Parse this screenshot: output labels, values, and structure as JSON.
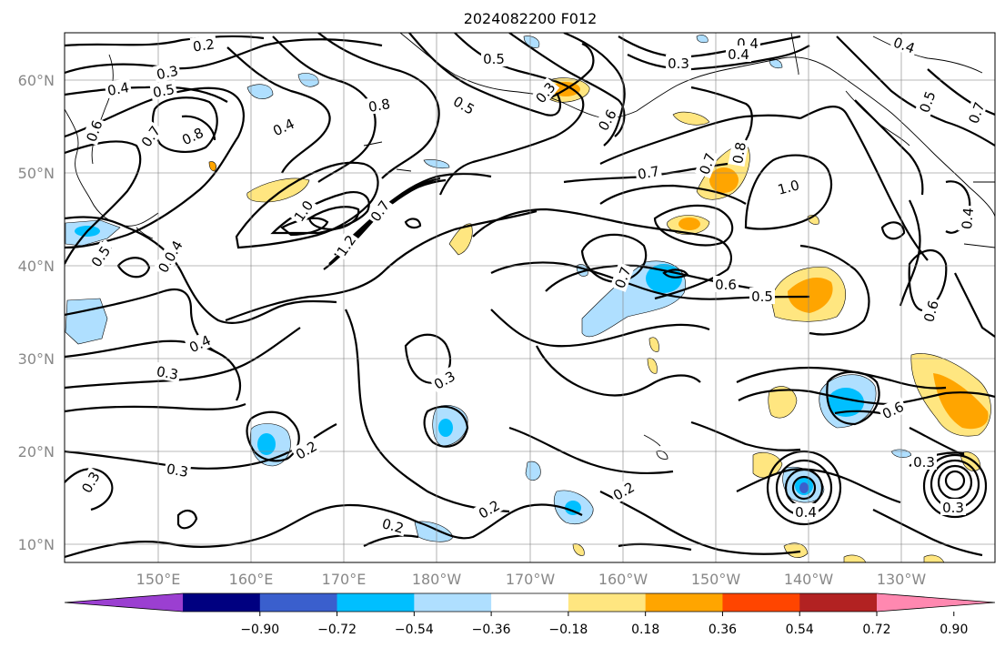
{
  "title": "2024082200 F012",
  "lat_labels": [
    "60°N",
    "50°N",
    "40°N",
    "30°N",
    "20°N",
    "10°N"
  ],
  "lon_labels": [
    "150°E",
    "160°E",
    "170°E",
    "180°W",
    "170°W",
    "160°W",
    "150°W",
    "140°W",
    "130°W"
  ],
  "colorbar": {
    "colors": [
      "#9b3fd1",
      "#000080",
      "#3a5fcd",
      "#00bfff",
      "#afdfff",
      "#ffffff",
      "#ffe680",
      "#ffa500",
      "#ff4500",
      "#b22222",
      "#ff88b0"
    ],
    "tick_labels": [
      "−0.90",
      "−0.72",
      "−0.54",
      "−0.36",
      "−0.18",
      "0.18",
      "0.36",
      "0.54",
      "0.72",
      "0.90"
    ]
  },
  "contour_labels": [
    "0.2",
    "0.3",
    "0.4",
    "0.5",
    "0.6",
    "0.7",
    "0.8",
    "1.0",
    "1.2"
  ],
  "contour_label_sample": [
    "0.2",
    "0.3",
    "0.3",
    "0.4",
    "0.4",
    "0.5",
    "0.4",
    "0.8",
    "0.7",
    "0.6",
    "0.8",
    "0.4",
    "0.5",
    "0.3",
    "0.5",
    "0.4",
    "0.3",
    "0.4",
    "0.6",
    "0.7",
    "0.7",
    "1.0",
    "0.8",
    "1.0",
    "1.2",
    "0.7",
    "0.4",
    "0.5",
    "0.6",
    "0.5",
    "0.7",
    "0.6",
    "0.6",
    "0.4",
    "0.3",
    "0.4",
    "0.3",
    "0.3",
    "0.2",
    "0.3",
    "0.2",
    "0.2",
    "0.2",
    "0.4",
    "0.3",
    "0.5",
    "0.4",
    "0.7"
  ]
}
